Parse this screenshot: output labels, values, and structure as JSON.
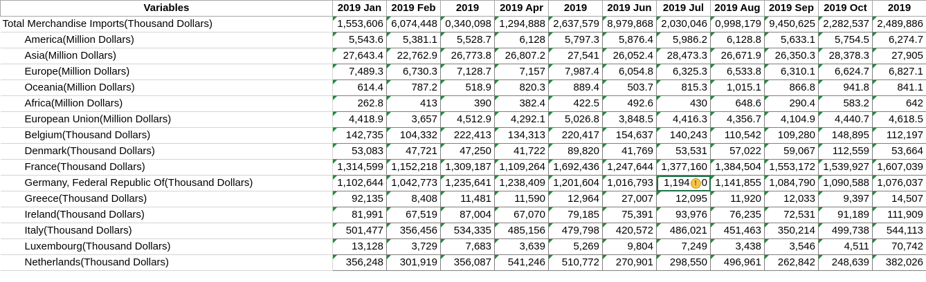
{
  "header": {
    "variables": "Variables",
    "columns": [
      "2019 Jan",
      "2019 Feb",
      "2019",
      "2019 Apr",
      "2019",
      "2019 Jun",
      "2019 Jul",
      "2019 Aug",
      "2019 Sep",
      "2019 Oct",
      "2019"
    ]
  },
  "rows": [
    {
      "label": "Total Merchandise Imports(Thousand Dollars)",
      "indent": false,
      "values": [
        "1,553,606",
        "6,074,448",
        "0,340,098",
        "1,294,888",
        "2,637,579",
        "8,979,868",
        "2,030,046",
        "0,998,179",
        "9,450,625",
        "2,282,537",
        "2,489,886"
      ]
    },
    {
      "label": "America(Million Dollars)",
      "indent": true,
      "values": [
        "5,543.6",
        "5,381.1",
        "5,528.7",
        "6,128",
        "5,797.3",
        "5,876.4",
        "5,986.2",
        "6,128.8",
        "5,633.1",
        "5,754.5",
        "6,274.7"
      ]
    },
    {
      "label": "Asia(Million Dollars)",
      "indent": true,
      "values": [
        "27,643.4",
        "22,762.9",
        "26,773.8",
        "26,807.2",
        "27,541",
        "26,052.4",
        "28,473.3",
        "26,671.9",
        "26,350.3",
        "28,378.3",
        "27,905"
      ]
    },
    {
      "label": "Europe(Million Dollars)",
      "indent": true,
      "values": [
        "7,489.3",
        "6,730.3",
        "7,128.7",
        "7,157",
        "7,987.4",
        "6,054.8",
        "6,325.3",
        "6,533.8",
        "6,310.1",
        "6,624.7",
        "6,827.1"
      ]
    },
    {
      "label": "Oceania(Million Dollars)",
      "indent": true,
      "values": [
        "614.4",
        "787.2",
        "518.9",
        "820.3",
        "889.4",
        "503.7",
        "815.3",
        "1,015.1",
        "866.8",
        "941.8",
        "841.1"
      ]
    },
    {
      "label": "Africa(Million Dollars)",
      "indent": true,
      "values": [
        "262.8",
        "413",
        "390",
        "382.4",
        "422.5",
        "492.6",
        "430",
        "648.6",
        "290.4",
        "583.2",
        "642"
      ]
    },
    {
      "label": "European Union(Million Dollars)",
      "indent": true,
      "values": [
        "4,418.9",
        "3,657",
        "4,512.9",
        "4,292.1",
        "5,026.8",
        "3,848.5",
        "4,416.3",
        "4,356.7",
        "4,104.9",
        "4,440.7",
        "4,618.5"
      ]
    },
    {
      "label": "Belgium(Thousand Dollars)",
      "indent": true,
      "values": [
        "142,735",
        "104,332",
        "222,413",
        "134,313",
        "220,417",
        "154,637",
        "140,243",
        "110,542",
        "109,280",
        "148,895",
        "112,197"
      ]
    },
    {
      "label": "Denmark(Thousand Dollars)",
      "indent": true,
      "values": [
        "53,083",
        "47,721",
        "47,250",
        "41,722",
        "89,820",
        "41,769",
        "53,531",
        "57,022",
        "59,067",
        "112,559",
        "53,664"
      ]
    },
    {
      "label": "France(Thousand Dollars)",
      "indent": true,
      "values": [
        "1,314,599",
        "1,152,218",
        "1,309,187",
        "1,109,264",
        "1,692,436",
        "1,247,644",
        "1,377,160",
        "1,384,504",
        "1,553,172",
        "1,539,927",
        "1,607,039"
      ]
    },
    {
      "label": "Germany, Federal Republic Of(Thousand Dollars)",
      "indent": true,
      "values": [
        "1,102,644",
        "1,042,773",
        "1,235,641",
        "1,238,409",
        "1,201,604",
        "1,016,793",
        "1,194",
        "1,141,855",
        "1,084,790",
        "1,090,588",
        "1,076,037"
      ],
      "warning_cell_suffix": "0"
    },
    {
      "label": "Greece(Thousand Dollars)",
      "indent": true,
      "values": [
        "92,135",
        "8,408",
        "11,481",
        "11,590",
        "12,964",
        "27,007",
        "12,095",
        "11,920",
        "12,033",
        "9,397",
        "14,507"
      ]
    },
    {
      "label": "Ireland(Thousand Dollars)",
      "indent": true,
      "values": [
        "81,991",
        "67,519",
        "87,004",
        "67,070",
        "79,185",
        "75,391",
        "93,976",
        "76,235",
        "72,531",
        "91,189",
        "111,909"
      ]
    },
    {
      "label": "Italy(Thousand Dollars)",
      "indent": true,
      "values": [
        "501,477",
        "356,456",
        "534,335",
        "485,156",
        "479,798",
        "420,572",
        "486,021",
        "451,463",
        "350,214",
        "499,738",
        "544,113"
      ]
    },
    {
      "label": "Luxembourg(Thousand Dollars)",
      "indent": true,
      "values": [
        "13,128",
        "3,729",
        "7,683",
        "3,639",
        "5,269",
        "9,804",
        "7,249",
        "3,438",
        "3,546",
        "4,511",
        "70,742"
      ]
    },
    {
      "label": "Netherlands(Thousand Dollars)",
      "indent": true,
      "values": [
        "356,248",
        "301,919",
        "356,087",
        "541,246",
        "510,772",
        "270,901",
        "298,550",
        "496,961",
        "262,842",
        "248,639",
        "382,026"
      ]
    }
  ],
  "icons": {
    "warning": "warning-icon",
    "warning_glyph": "!"
  },
  "colors": {
    "error_triangle": "#1e8f3a",
    "warning_icon": "#f6c343"
  }
}
